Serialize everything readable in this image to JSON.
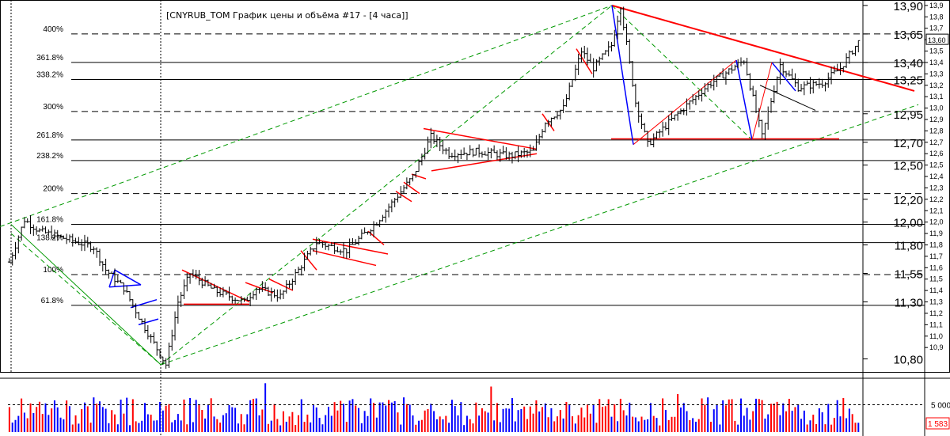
{
  "title": "[CNYRUB_TOM График цены и объёма #17 - [4 часа]]",
  "colors": {
    "price_bar": "#000000",
    "grid": "#000000",
    "trend_red": "#ff0000",
    "trend_blue": "#0000ff",
    "channel_green": "#009900",
    "volume_up": "#0000ff",
    "volume_down": "#ff0000",
    "volume_box": "#ff0000"
  },
  "chart_data": [
    {
      "type": "candlestick",
      "title": "[CNYRUB_TOM График цены и объёма #17 - [4 часа]]",
      "ylim": [
        10.7,
        13.92
      ],
      "y_ticks_small": [
        "13,9",
        "13,8",
        "13,7",
        "13,6",
        "13,5",
        "13,4",
        "13,3",
        "13,2",
        "13,1",
        "13,0",
        "12,9",
        "12,8",
        "12,7",
        "12,6",
        "12,5",
        "12,4",
        "12,3",
        "12,2",
        "12,1",
        "12,0",
        "11,9",
        "11,8",
        "11,7",
        "11,6",
        "11,5",
        "11,4",
        "11,3",
        "11,2",
        "11,1",
        "11,0",
        "10,9"
      ],
      "y_ticks_large": [
        "13,90",
        "13,65",
        "13,40",
        "13,25",
        "12,95",
        "12,70",
        "12,50",
        "12,20",
        "12,00",
        "11,80",
        "11,55",
        "11,30",
        "10,80"
      ],
      "last_price_label": "13,60",
      "fib_levels": [
        {
          "label": "400%",
          "value": 13.65,
          "dashed": true
        },
        {
          "label": "361.8%",
          "value": 13.4,
          "dashed": false
        },
        {
          "label": "338.2%",
          "value": 13.25,
          "dashed": false
        },
        {
          "label": "300%",
          "value": 12.97,
          "dashed": true
        },
        {
          "label": "261.8%",
          "value": 12.72,
          "dashed": false
        },
        {
          "label": "238.2%",
          "value": 12.54,
          "dashed": false
        },
        {
          "label": "200%",
          "value": 12.25,
          "dashed": true
        },
        {
          "label": "161.8%",
          "value": 11.98,
          "dashed": false
        },
        {
          "label": "138.2%",
          "value": 11.82,
          "dashed": false
        },
        {
          "label": "100%",
          "value": 11.54,
          "dashed": true
        },
        {
          "label": "61.8%",
          "value": 11.27,
          "dashed": false
        }
      ],
      "price_path": [
        {
          "bar": 0,
          "price": 11.65
        },
        {
          "bar": 5,
          "price": 12.02
        },
        {
          "bar": 10,
          "price": 11.92
        },
        {
          "bar": 18,
          "price": 11.86
        },
        {
          "bar": 28,
          "price": 11.78
        },
        {
          "bar": 32,
          "price": 11.58
        },
        {
          "bar": 38,
          "price": 11.42
        },
        {
          "bar": 44,
          "price": 11.12
        },
        {
          "bar": 52,
          "price": 10.75
        },
        {
          "bar": 56,
          "price": 11.3
        },
        {
          "bar": 60,
          "price": 11.55
        },
        {
          "bar": 68,
          "price": 11.4
        },
        {
          "bar": 78,
          "price": 11.3
        },
        {
          "bar": 82,
          "price": 11.42
        },
        {
          "bar": 90,
          "price": 11.35
        },
        {
          "bar": 96,
          "price": 11.58
        },
        {
          "bar": 102,
          "price": 11.82
        },
        {
          "bar": 112,
          "price": 11.75
        },
        {
          "bar": 122,
          "price": 12.0
        },
        {
          "bar": 128,
          "price": 12.2
        },
        {
          "bar": 134,
          "price": 12.4
        },
        {
          "bar": 140,
          "price": 12.75
        },
        {
          "bar": 146,
          "price": 12.6
        },
        {
          "bar": 156,
          "price": 12.62
        },
        {
          "bar": 166,
          "price": 12.58
        },
        {
          "bar": 174,
          "price": 12.62
        },
        {
          "bar": 178,
          "price": 12.88
        },
        {
          "bar": 184,
          "price": 13.0
        },
        {
          "bar": 190,
          "price": 13.5
        },
        {
          "bar": 194,
          "price": 13.35
        },
        {
          "bar": 200,
          "price": 13.55
        },
        {
          "bar": 203,
          "price": 13.9
        },
        {
          "bar": 208,
          "price": 13.05
        },
        {
          "bar": 212,
          "price": 12.68
        },
        {
          "bar": 220,
          "price": 12.9
        },
        {
          "bar": 232,
          "price": 13.2
        },
        {
          "bar": 244,
          "price": 13.42
        },
        {
          "bar": 250,
          "price": 12.75
        },
        {
          "bar": 256,
          "price": 13.38
        },
        {
          "bar": 262,
          "price": 13.18
        },
        {
          "bar": 270,
          "price": 13.22
        },
        {
          "bar": 276,
          "price": 13.35
        },
        {
          "bar": 282,
          "price": 13.58
        }
      ],
      "volume": {
        "y_tick": "5 000",
        "last_label": "1 583"
      }
    }
  ]
}
